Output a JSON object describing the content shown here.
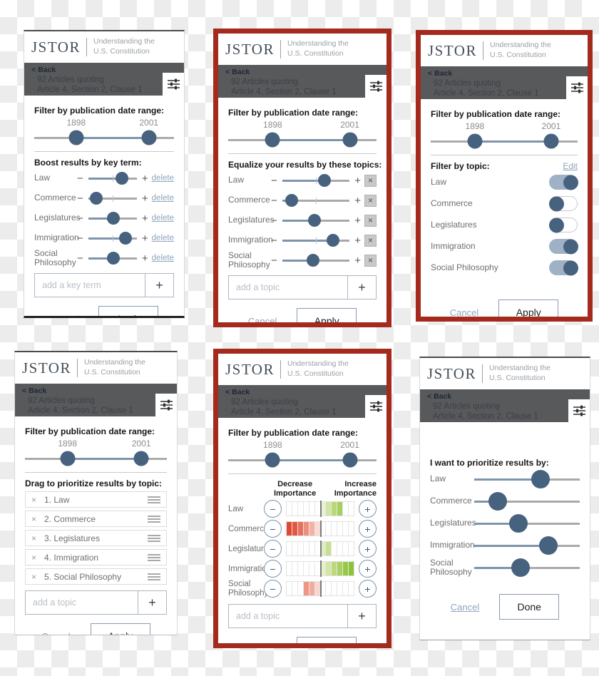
{
  "app": {
    "logo": "JSTOR",
    "subtitle_1": "Understanding the",
    "subtitle_2": "U.S. Constitution",
    "back_chevron": "<",
    "back_label": "Back",
    "results_line1": "92 Articles quoting",
    "results_line2": "Article 4, Section 2, Clause 1"
  },
  "date_filter": {
    "label": "Filter by publication date range:",
    "start_year": "1898",
    "end_year": "2001",
    "start_pct": 30,
    "end_pct": 82
  },
  "actions": {
    "cancel": "Cancel",
    "apply": "Apply",
    "done": "Done",
    "delete": "delete",
    "edit": "Edit",
    "plus": "+",
    "minus": "−",
    "close": "×",
    "add": "+"
  },
  "inputs": {
    "key_term_placeholder": "add a key term",
    "topic_placeholder": "add a topic"
  },
  "colors": {
    "accent_slate": "#47627f",
    "track_fill": "#7e94aa",
    "link_blue": "#90a5bd",
    "frame_red": "#a32a1c",
    "bar_gray": "#58595b",
    "increase_green": "#8cc335",
    "decrease_red": "#df4a30"
  },
  "panels": {
    "boost": {
      "heading": "Boost results by key term:",
      "rows": [
        {
          "label": "Law",
          "pct": 70
        },
        {
          "label": "Commerce",
          "pct": 17
        },
        {
          "label": "Legislatures",
          "pct": 52
        },
        {
          "label": "Immigration",
          "pct": 77
        },
        {
          "label": "Social Philosophy",
          "pct": 52
        }
      ]
    },
    "equalize": {
      "heading": "Equalize your results by these topics:",
      "rows": [
        {
          "label": "Law",
          "pct": 63
        },
        {
          "label": "Commerce",
          "pct": 14
        },
        {
          "label": "Legislatures",
          "pct": 48
        },
        {
          "label": "Immigration",
          "pct": 75
        },
        {
          "label": "Social Philosophy",
          "pct": 46
        }
      ]
    },
    "toggle": {
      "heading": "Filter by topic:",
      "rows": [
        {
          "label": "Law",
          "on": true
        },
        {
          "label": "Commerce",
          "on": false
        },
        {
          "label": "Legislatures",
          "on": false
        },
        {
          "label": "Immigration",
          "on": true
        },
        {
          "label": "Social Philosophy",
          "on": true
        }
      ]
    },
    "drag": {
      "heading": "Drag to prioritize results by topic:",
      "rows": [
        {
          "label": "1. Law"
        },
        {
          "label": "2. Commerce"
        },
        {
          "label": "3. Legislatures"
        },
        {
          "label": "4. Immigration"
        },
        {
          "label": "5. Social Philosophy"
        }
      ]
    },
    "importance": {
      "decrease_line1": "Decrease",
      "decrease_line2": "Importance",
      "increase_line1": "Increase",
      "increase_line2": "Importance",
      "rows": [
        {
          "label": "Law",
          "cells": [
            null,
            null,
            null,
            null,
            null,
            null,
            "#e9f2d4",
            "#d2e5a6",
            "#b9d877",
            "#a6d05e",
            null,
            null
          ]
        },
        {
          "label": "Commerce",
          "cells": [
            "#df4a30",
            "#e25843",
            "#e76f5b",
            "#ed8f7f",
            "#f3b2a5",
            "#fadbd4",
            null,
            null,
            null,
            null,
            null,
            null
          ]
        },
        {
          "label": "Legislatures",
          "cells": [
            null,
            null,
            null,
            null,
            null,
            null,
            "#dfeec0",
            "#c6e092",
            null,
            null,
            null,
            null
          ]
        },
        {
          "label": "Immigration",
          "cells": [
            null,
            null,
            null,
            null,
            null,
            null,
            "#e6f1ca",
            "#d3e7a4",
            "#bcda7c",
            "#a8d160",
            "#97c946",
            "#8cc335"
          ]
        },
        {
          "label": "Social Philosophy",
          "cells": [
            null,
            null,
            null,
            "#ef9486",
            "#f3ab9e",
            "#f8d7d1",
            null,
            null,
            null,
            null,
            null,
            null
          ]
        }
      ]
    },
    "prioritize": {
      "heading": "I want to prioritize results by:",
      "rows": [
        {
          "label": "Law",
          "pct": 63
        },
        {
          "label": "Commerce",
          "pct": 22
        },
        {
          "label": "Legislatures",
          "pct": 42
        },
        {
          "label": "Immigration",
          "pct": 70
        },
        {
          "label": "Social Philosophy",
          "pct": 44
        }
      ]
    }
  }
}
